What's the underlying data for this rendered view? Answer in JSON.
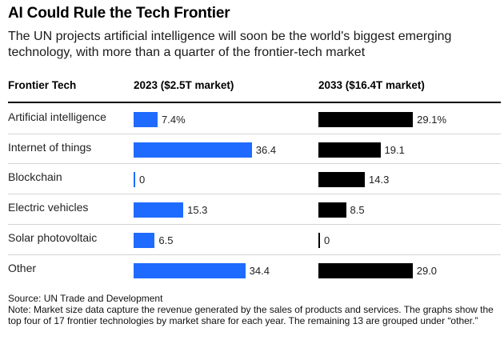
{
  "header": {
    "title": "AI Could Rule the Tech Frontier",
    "subtitle": "The UN projects artificial intelligence will soon be the world's biggest emerging technology, with more than a quarter of the frontier-tech market"
  },
  "columns": {
    "category": "Frontier Tech",
    "y2023": "2023 ($2.5T market)",
    "y2033": "2033 ($16.4T market)"
  },
  "colors": {
    "series2023": "#1f6bff",
    "series2033": "#000000"
  },
  "chart_data": {
    "type": "bar",
    "orientation": "horizontal",
    "title": "AI Could Rule the Tech Frontier",
    "categories": [
      "Artificial intelligence",
      "Internet of things",
      "Blockchain",
      "Electric vehicles",
      "Solar photovoltaic",
      "Other"
    ],
    "series": [
      {
        "name": "2023 ($2.5T market)",
        "values": [
          7.4,
          36.4,
          0,
          15.3,
          6.5,
          34.4
        ],
        "labels": [
          "7.4%",
          "36.4",
          "0",
          "15.3",
          "6.5",
          "34.4"
        ]
      },
      {
        "name": "2033 ($16.4T market)",
        "values": [
          29.1,
          19.1,
          14.3,
          8.5,
          0,
          29.0
        ],
        "labels": [
          "29.1%",
          "19.1",
          "14.3",
          "8.5",
          "0",
          "29.0"
        ]
      }
    ],
    "unit": "% of market"
  },
  "footer": {
    "source": "Source: UN Trade and Development",
    "note": "Note: Market size data capture the revenue generated by the sales of products and services. The graphs show the top four of 17 frontier technologies by market share for each year. The remaining 13 are grouped under “other.”"
  }
}
